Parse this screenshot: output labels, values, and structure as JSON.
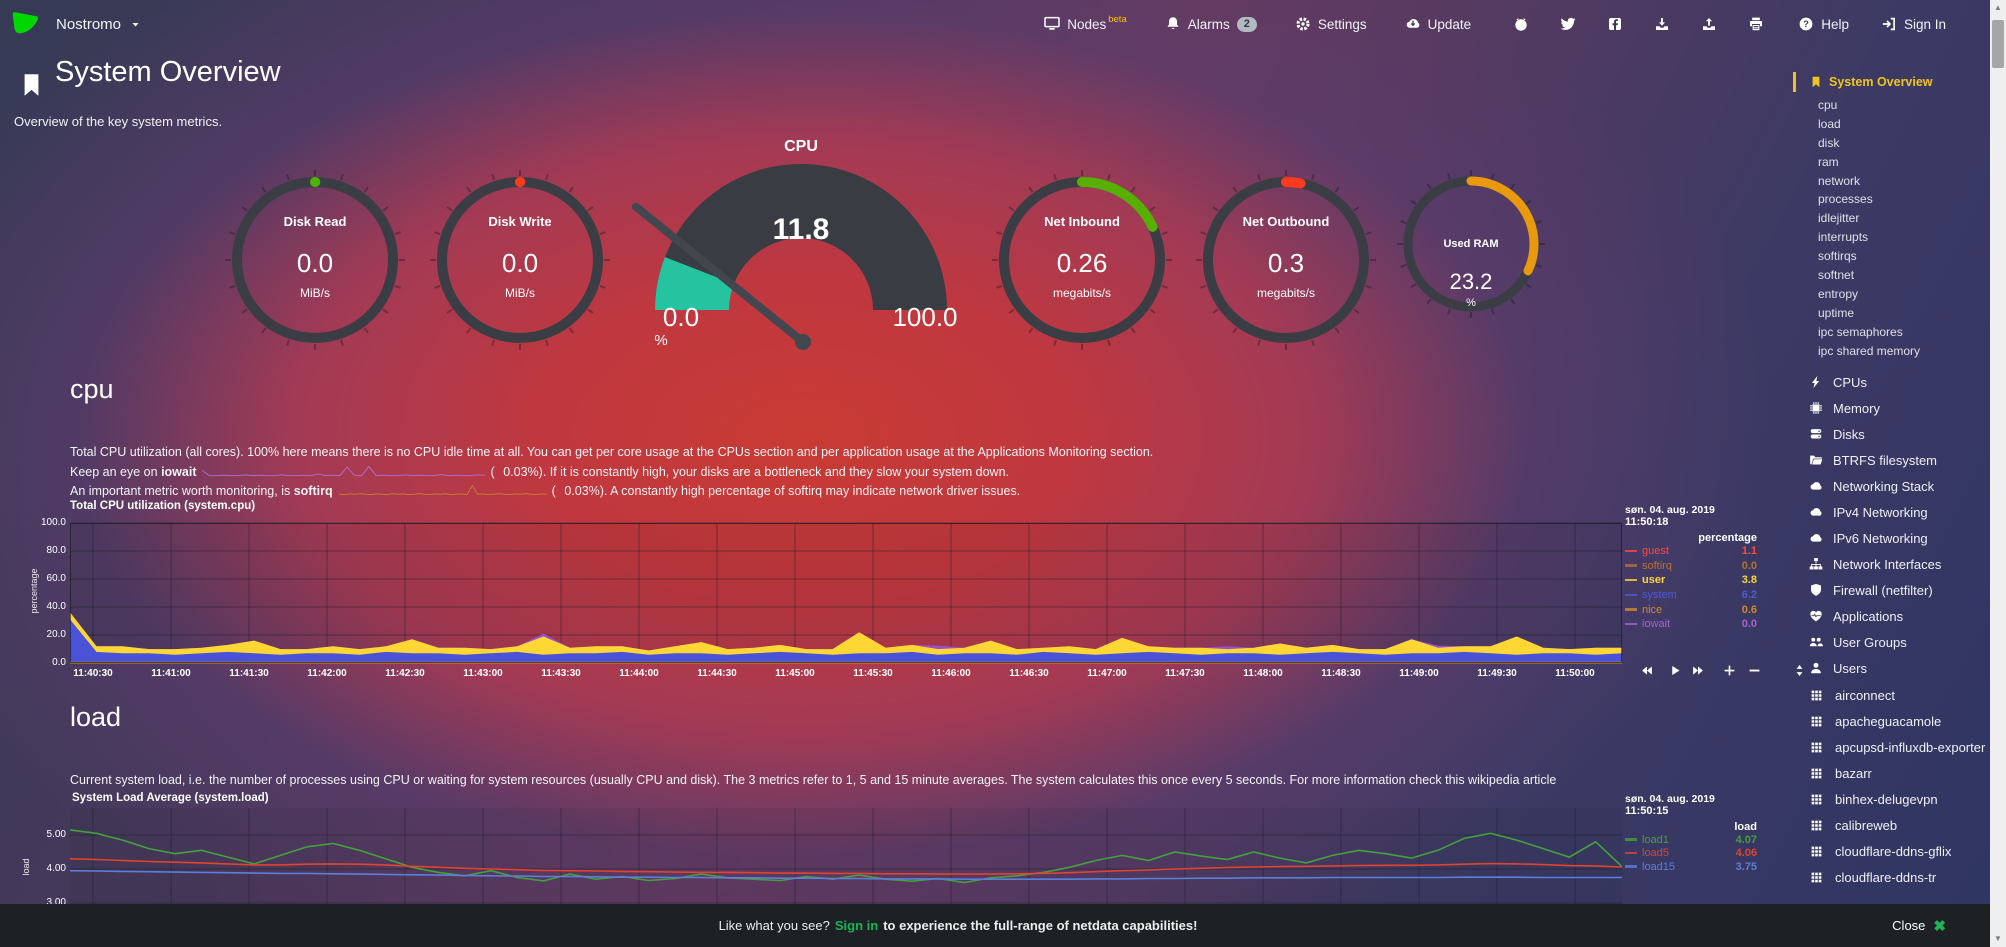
{
  "navbar": {
    "hostname": "Nostromo",
    "menu": [
      {
        "name": "nodes",
        "label": "Nodes",
        "superscript": "beta",
        "icon": "monitor"
      },
      {
        "name": "alarms",
        "label": "Alarms",
        "badge": "2",
        "icon": "bell"
      },
      {
        "name": "settings",
        "label": "Settings",
        "icon": "gear"
      },
      {
        "name": "update",
        "label": "Update",
        "icon": "cloud-download"
      }
    ],
    "icon_buttons": [
      {
        "name": "github",
        "icon": "github"
      },
      {
        "name": "twitter",
        "icon": "twitter"
      },
      {
        "name": "facebook",
        "icon": "facebook"
      },
      {
        "name": "import",
        "icon": "tray-download"
      },
      {
        "name": "export",
        "icon": "tray-upload"
      },
      {
        "name": "print",
        "icon": "printer"
      }
    ],
    "help_label": "Help",
    "signin_label": "Sign In"
  },
  "header": {
    "title": "System Overview",
    "subtitle": "Overview of the key system metrics."
  },
  "gauges": [
    {
      "kind": "ring",
      "label": "Disk Read",
      "value": "0.0",
      "unit": "MiB/s",
      "percent": 0,
      "color": "#4db400",
      "size": "large"
    },
    {
      "kind": "ring",
      "label": "Disk Write",
      "value": "0.0",
      "unit": "MiB/s",
      "percent": 0,
      "color": "#ff3b1f",
      "size": "large"
    },
    {
      "kind": "meter",
      "label": "CPU",
      "value": "11.8",
      "min": "0.0",
      "max": "100.0",
      "unit": "%",
      "percent": 11.8,
      "color": "#25c3a0"
    },
    {
      "kind": "ring",
      "label": "Net Inbound",
      "value": "0.26",
      "unit": "megabits/s",
      "percent": 18,
      "color": "#57b000",
      "size": "large"
    },
    {
      "kind": "ring",
      "label": "Net Outbound",
      "value": "0.3",
      "unit": "megabits/s",
      "percent": 3,
      "color": "#ff3b1f",
      "size": "large"
    },
    {
      "kind": "ring",
      "label": "Used RAM",
      "value": "23.2",
      "unit": "%",
      "percent": 32,
      "color": "#e89a0c",
      "size": "small"
    }
  ],
  "cpu_section": {
    "heading": "cpu",
    "line1": "Total CPU utilization (all cores). 100% here means there is no CPU idle time at all. You can get per core usage at the CPUs section and per application usage at the Applications Monitoring section.",
    "line2": {
      "prefix": "Keep an eye on",
      "metric": "iowait",
      "value": "0.03%",
      "suffix": "). If it is constantly high, your disks are a bottleneck and they slow your system down.",
      "spark_color": "#b069c4",
      "spark": [
        2,
        0.3,
        0.3,
        0.4,
        0.3,
        0.3,
        0.5,
        0.3,
        0.4,
        0.3,
        0.3,
        0.5,
        0.3,
        0.3,
        0.4,
        0.3,
        0.8,
        0.3,
        0.4,
        0.3,
        3,
        0.4,
        0.3,
        3.2,
        0.3,
        0.4,
        0.3,
        0.3,
        0.5,
        0.3,
        0.4,
        0.3,
        0.3,
        0.6,
        0.3,
        0.4,
        0.3,
        0.3,
        0.5,
        0.4
      ]
    },
    "line3": {
      "prefix": "An important metric worth monitoring, is",
      "metric": "softirq",
      "value": "0.03%",
      "suffix": "). A constantly high percentage of softirq may indicate network driver issues.",
      "spark_color": "#c8762e",
      "spark": [
        0.4,
        0.3,
        0.5,
        0.4,
        0.6,
        0.4,
        0.3,
        0.5,
        0.4,
        0.3,
        0.6,
        0.4,
        0.5,
        0.3,
        0.4,
        0.6,
        0.4,
        0.3,
        0.5,
        0.4,
        0.6,
        0.3,
        0.4,
        0.5,
        0.3,
        3.2,
        0.4,
        0.5,
        0.3,
        0.4,
        0.6,
        0.4,
        0.3,
        0.5,
        0.4,
        0.6,
        0.4,
        0.3,
        0.5,
        0.4
      ]
    }
  },
  "load_section": {
    "heading": "load",
    "description": "Current system load, i.e. the number of processes using CPU or waiting for system resources (usually CPU and disk). The 3 metrics refer to 1, 5 and 15 minute averages. The system calculates this once every 5 seconds. For more information check this wikipedia article"
  },
  "chart_toolbar": [
    "rewind",
    "play",
    "fast-forward",
    "plus",
    "minus",
    "updown"
  ],
  "chart_data": [
    {
      "id": "cpu",
      "type": "area-stacked",
      "title": "Total CPU utilization (system.cpu)",
      "date": "søn. 04. aug. 2019",
      "time": "11:50:18",
      "ylabel": "percentage",
      "legend_header": "percentage",
      "ylim": [
        0,
        100
      ],
      "y_ticks": [
        "100.0",
        "80.0",
        "60.0",
        "40.0",
        "20.0",
        "0.0"
      ],
      "x_ticks": [
        "11:40:30",
        "11:41:00",
        "11:41:30",
        "11:42:00",
        "11:42:30",
        "11:43:00",
        "11:43:30",
        "11:44:00",
        "11:44:30",
        "11:45:00",
        "11:45:30",
        "11:46:00",
        "11:46:30",
        "11:47:00",
        "11:47:30",
        "11:48:00",
        "11:48:30",
        "11:49:00",
        "11:49:30",
        "11:50:00"
      ],
      "legend": [
        {
          "name": "guest",
          "value": "1.1",
          "color": "#ff4a3c"
        },
        {
          "name": "softirq",
          "value": "0.0",
          "color": "#b5722f"
        },
        {
          "name": "user",
          "value": "3.8",
          "color": "#ffd735",
          "bold": true
        },
        {
          "name": "system",
          "value": "6.2",
          "color": "#5158d8"
        },
        {
          "name": "nice",
          "value": "0.6",
          "color": "#cf8a2a"
        },
        {
          "name": "iowait",
          "value": "0.0",
          "color": "#a95fd0"
        }
      ],
      "series": [
        {
          "name": "nice",
          "color": "#cf8a2a",
          "values": [
            0.6,
            0.6,
            0.6,
            0.6,
            0.6,
            0.6,
            0.6,
            0.6,
            0.6,
            0.6,
            0.6,
            0.6,
            0.6,
            0.6,
            0.6,
            0.6,
            0.6,
            0.6,
            0.6,
            0.6,
            0.6,
            0.6,
            0.6,
            0.6,
            0.6,
            0.6,
            0.6,
            0.6,
            0.6,
            0.6,
            0.6,
            0.6,
            0.6,
            0.6,
            0.6,
            0.6,
            0.6,
            0.6,
            0.6,
            0.6,
            0.6,
            0.6,
            0.6,
            0.6,
            0.6,
            0.6,
            0.6,
            0.6,
            0.6,
            0.6,
            0.6,
            0.6,
            0.6,
            0.6,
            0.6,
            0.6,
            0.6,
            0.6,
            0.6,
            0.6
          ]
        },
        {
          "name": "system",
          "color": "#4a52d8",
          "values": [
            30,
            7,
            6,
            6,
            5,
            6,
            7,
            6,
            5,
            6,
            6,
            5,
            7,
            6,
            6,
            5,
            6,
            7,
            5,
            6,
            6,
            7,
            5,
            6,
            6,
            5,
            6,
            7,
            6,
            5,
            6,
            6,
            7,
            5,
            6,
            6,
            5,
            7,
            6,
            5,
            6,
            7,
            6,
            5,
            6,
            6,
            5,
            6,
            7,
            6,
            5,
            6,
            6,
            7,
            6,
            5,
            6,
            6,
            5,
            6
          ]
        },
        {
          "name": "user",
          "color": "#ffd735",
          "values": [
            5,
            4,
            5,
            3,
            4,
            4,
            5,
            9,
            4,
            3,
            5,
            4,
            4,
            10,
            4,
            5,
            3,
            4,
            13,
            4,
            5,
            4,
            3,
            5,
            8,
            4,
            4,
            5,
            3,
            4,
            15,
            4,
            5,
            4,
            4,
            9,
            4,
            3,
            5,
            4,
            11,
            4,
            4,
            5,
            3,
            4,
            8,
            4,
            5,
            3,
            4,
            10,
            4,
            4,
            5,
            13,
            4,
            3,
            5,
            4
          ]
        },
        {
          "name": "iowait",
          "color": "#9a4fd0",
          "values": [
            0,
            0,
            0,
            0,
            0,
            0,
            0,
            0,
            0,
            0,
            0,
            0,
            0,
            0,
            0,
            0,
            0,
            0,
            2,
            0,
            0,
            0,
            0,
            0,
            0,
            0,
            0,
            0,
            0,
            0,
            0,
            0,
            0,
            2.5,
            0,
            0,
            0,
            0,
            0,
            0,
            0,
            0,
            0,
            0,
            2,
            0,
            0,
            0,
            0,
            0,
            0,
            0,
            1.5,
            0,
            0,
            0,
            0,
            0,
            0,
            0
          ]
        }
      ]
    },
    {
      "id": "load",
      "type": "line",
      "title": "System Load Average (system.load)",
      "date": "søn. 04. aug. 2019",
      "time": "11:50:15",
      "ylabel": "load",
      "legend_header": "load",
      "y_ticks": [
        "5.00",
        "4.00",
        "3.00"
      ],
      "legend": [
        {
          "name": "load1",
          "value": "4.07",
          "color": "#44a03c"
        },
        {
          "name": "load5",
          "value": "4.06",
          "color": "#e0432e"
        },
        {
          "name": "load15",
          "value": "3.75",
          "color": "#5b7fd8"
        }
      ],
      "series": [
        {
          "name": "load1",
          "color": "#44a03c",
          "values": [
            5.15,
            5.05,
            4.85,
            4.6,
            4.45,
            4.55,
            4.35,
            4.15,
            4.4,
            4.65,
            4.75,
            4.55,
            4.3,
            4.05,
            3.9,
            3.8,
            3.95,
            3.75,
            3.65,
            3.85,
            3.7,
            3.78,
            3.66,
            3.72,
            3.85,
            3.74,
            3.7,
            3.66,
            3.78,
            3.7,
            3.82,
            3.7,
            3.64,
            3.72,
            3.6,
            3.74,
            3.8,
            3.9,
            4.05,
            4.25,
            4.4,
            4.25,
            4.5,
            4.38,
            4.28,
            4.5,
            4.32,
            4.18,
            4.4,
            4.55,
            4.45,
            4.32,
            4.55,
            4.9,
            5.05,
            4.85,
            4.6,
            4.35,
            4.8,
            4.07
          ]
        },
        {
          "name": "load5",
          "color": "#e0432e",
          "values": [
            4.3,
            4.28,
            4.25,
            4.22,
            4.2,
            4.18,
            4.15,
            4.12,
            4.12,
            4.14,
            4.15,
            4.14,
            4.12,
            4.08,
            4.05,
            4.02,
            4.0,
            3.98,
            3.96,
            3.95,
            3.94,
            3.93,
            3.92,
            3.91,
            3.9,
            3.9,
            3.89,
            3.88,
            3.88,
            3.87,
            3.87,
            3.86,
            3.86,
            3.85,
            3.85,
            3.85,
            3.86,
            3.87,
            3.89,
            3.92,
            3.95,
            3.97,
            4.0,
            4.02,
            4.04,
            4.06,
            4.07,
            4.08,
            4.09,
            4.1,
            4.11,
            4.11,
            4.12,
            4.14,
            4.16,
            4.15,
            4.13,
            4.1,
            4.09,
            4.06
          ]
        },
        {
          "name": "load15",
          "color": "#5b7fd8",
          "values": [
            3.95,
            3.94,
            3.93,
            3.92,
            3.91,
            3.9,
            3.89,
            3.88,
            3.87,
            3.87,
            3.86,
            3.85,
            3.84,
            3.83,
            3.82,
            3.81,
            3.8,
            3.79,
            3.78,
            3.78,
            3.77,
            3.76,
            3.76,
            3.75,
            3.75,
            3.74,
            3.74,
            3.73,
            3.73,
            3.72,
            3.72,
            3.71,
            3.71,
            3.71,
            3.7,
            3.7,
            3.7,
            3.7,
            3.7,
            3.71,
            3.71,
            3.72,
            3.72,
            3.73,
            3.73,
            3.74,
            3.74,
            3.74,
            3.75,
            3.75,
            3.75,
            3.75,
            3.75,
            3.76,
            3.76,
            3.76,
            3.75,
            3.75,
            3.75,
            3.75
          ]
        }
      ]
    }
  ],
  "sidebar": {
    "active": {
      "label": "System Overview",
      "icon": "bookmark"
    },
    "submenu": [
      "cpu",
      "load",
      "disk",
      "ram",
      "network",
      "processes",
      "idlejitter",
      "interrupts",
      "softirqs",
      "softnet",
      "entropy",
      "uptime",
      "ipc semaphores",
      "ipc shared memory"
    ],
    "sections": [
      {
        "icon": "bolt",
        "label": "CPUs"
      },
      {
        "icon": "chip",
        "label": "Memory"
      },
      {
        "icon": "disks",
        "label": "Disks"
      },
      {
        "icon": "folder",
        "label": "BTRFS filesystem"
      },
      {
        "icon": "cloud",
        "label": "Networking Stack"
      },
      {
        "icon": "cloud",
        "label": "IPv4 Networking"
      },
      {
        "icon": "cloud",
        "label": "IPv6 Networking"
      },
      {
        "icon": "sitemap",
        "label": "Network Interfaces"
      },
      {
        "icon": "shield",
        "label": "Firewall (netfilter)"
      },
      {
        "icon": "heart",
        "label": "Applications"
      },
      {
        "icon": "users",
        "label": "User Groups"
      },
      {
        "icon": "user",
        "label": "Users"
      }
    ],
    "apps": [
      "airconnect",
      "apacheguacamole",
      "apcupsd-influxdb-exporter",
      "bazarr",
      "binhex-delugevpn",
      "calibreweb",
      "cloudflare-ddns-gflix",
      "cloudflare-ddns-tr"
    ]
  },
  "bottom_bar": {
    "prefix": "Like what you see?",
    "signin": "Sign in",
    "suffix": "to experience the full-range of netdata capabilities!",
    "close": "Close"
  }
}
